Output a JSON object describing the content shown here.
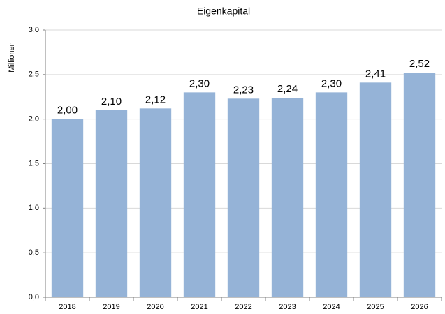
{
  "chart_data": {
    "type": "bar",
    "title": "Eigenkapital",
    "y_label": "Millionen",
    "categories": [
      "2018",
      "2019",
      "2020",
      "2021",
      "2022",
      "2023",
      "2024",
      "2025",
      "2026"
    ],
    "values": [
      2.0,
      2.1,
      2.12,
      2.3,
      2.23,
      2.24,
      2.3,
      2.41,
      2.52
    ],
    "value_labels": [
      "2,00",
      "2,10",
      "2,12",
      "2,30",
      "2,23",
      "2,24",
      "2,30",
      "2,41",
      "2,52"
    ],
    "color": "#95b3d7",
    "ylim": [
      0,
      3
    ],
    "yticks": [
      {
        "value": 0,
        "label": "0,0"
      },
      {
        "value": 0.5,
        "label": "0,5"
      },
      {
        "value": 1,
        "label": "1,0"
      },
      {
        "value": 1.5,
        "label": "1,5"
      },
      {
        "value": 2,
        "label": "2,0"
      },
      {
        "value": 2.5,
        "label": "2,5"
      },
      {
        "value": 3,
        "label": "3,0"
      }
    ],
    "grid": true
  }
}
